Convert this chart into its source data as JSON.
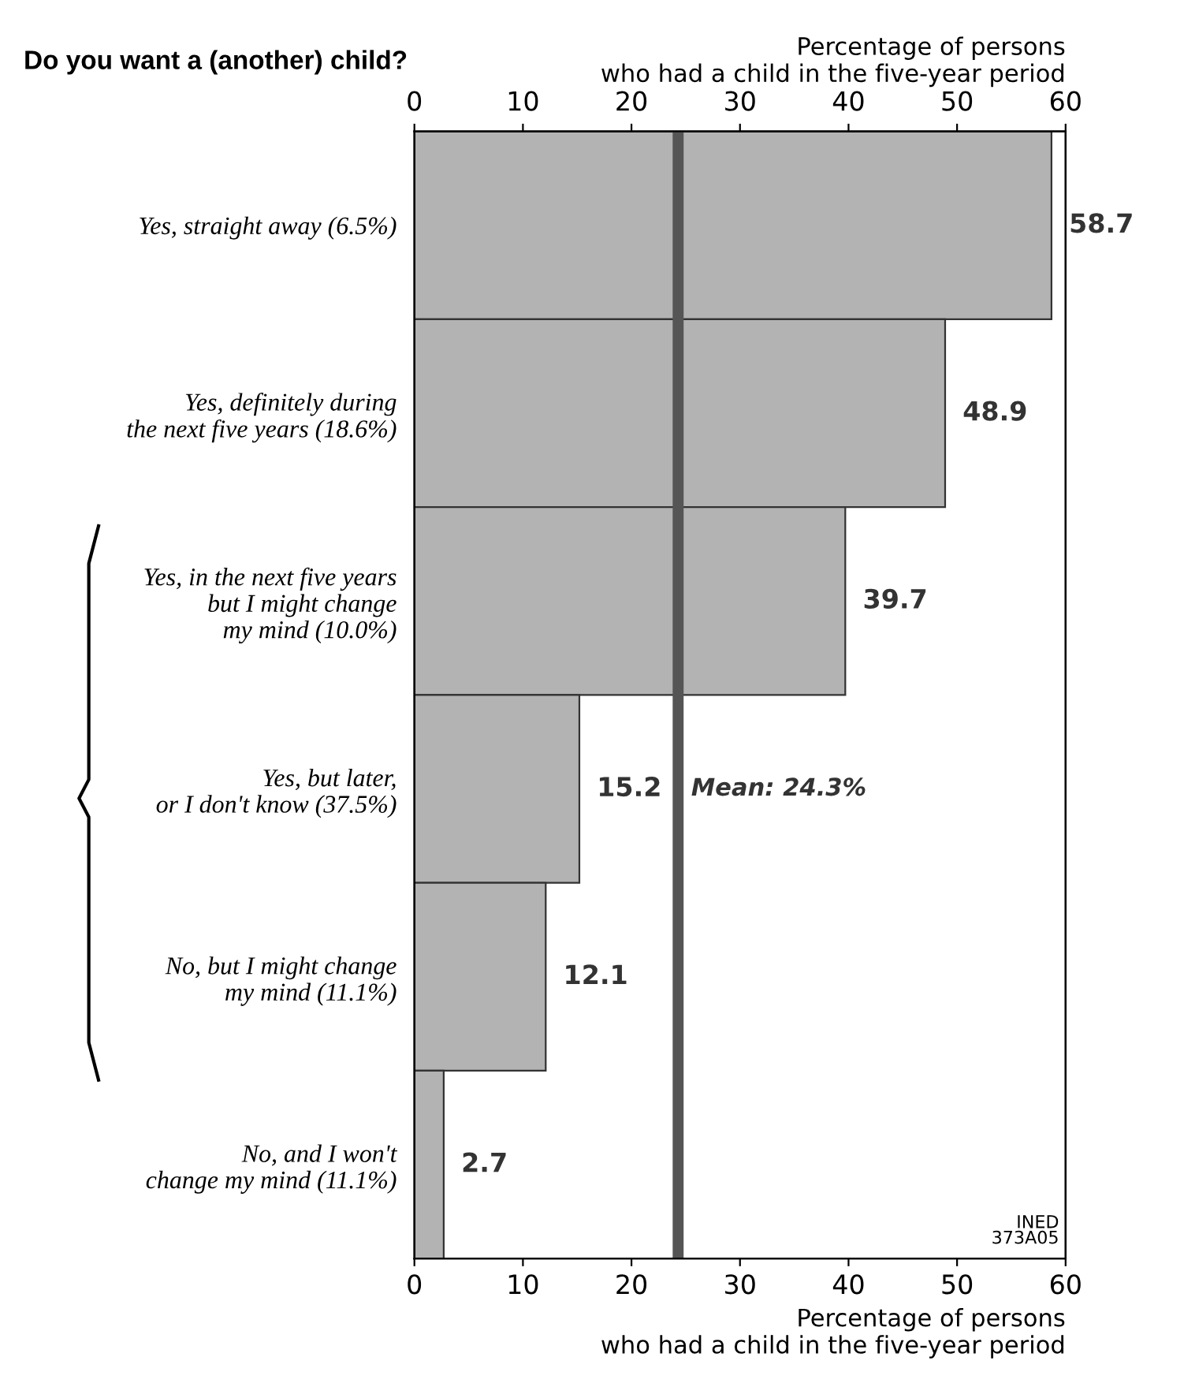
{
  "chart_data": {
    "type": "bar",
    "orientation": "horizontal",
    "title": "Do you want a (another) child?",
    "categories": [
      "Yes, straight away (6.5%)",
      "Yes, definitely during\nthe next five years (18.6%)",
      "Yes, in the next five years\nbut I might change\nmy mind (10.0%)",
      "Yes, but later,\nor I don't know (37.5%)",
      "No, but I might change\nmy mind (11.1%)",
      "No, and I won't\nchange my mind (11.1%)"
    ],
    "values": [
      58.7,
      48.9,
      39.7,
      15.2,
      12.1,
      2.7
    ],
    "color": "#b3b3b3",
    "data_labels": true,
    "xlim": [
      0,
      60
    ],
    "xticks": [
      0,
      10,
      20,
      30,
      40,
      50,
      60
    ],
    "x2lim": [
      0,
      60
    ],
    "x2ticks": [
      0,
      10,
      20,
      30,
      40,
      50,
      60
    ],
    "xlabel": "Percentage of persons\nwho had a child in the five-year period",
    "x2label": "Percentage of persons\nwho had a child in the five-year period",
    "ref_lines": [
      {
        "axis": "x",
        "value": 24.3,
        "label": "Mean: 24.3%",
        "color": "#555555"
      }
    ],
    "annotations": [
      "INED\n373A05"
    ],
    "grid": false,
    "legend": false
  }
}
